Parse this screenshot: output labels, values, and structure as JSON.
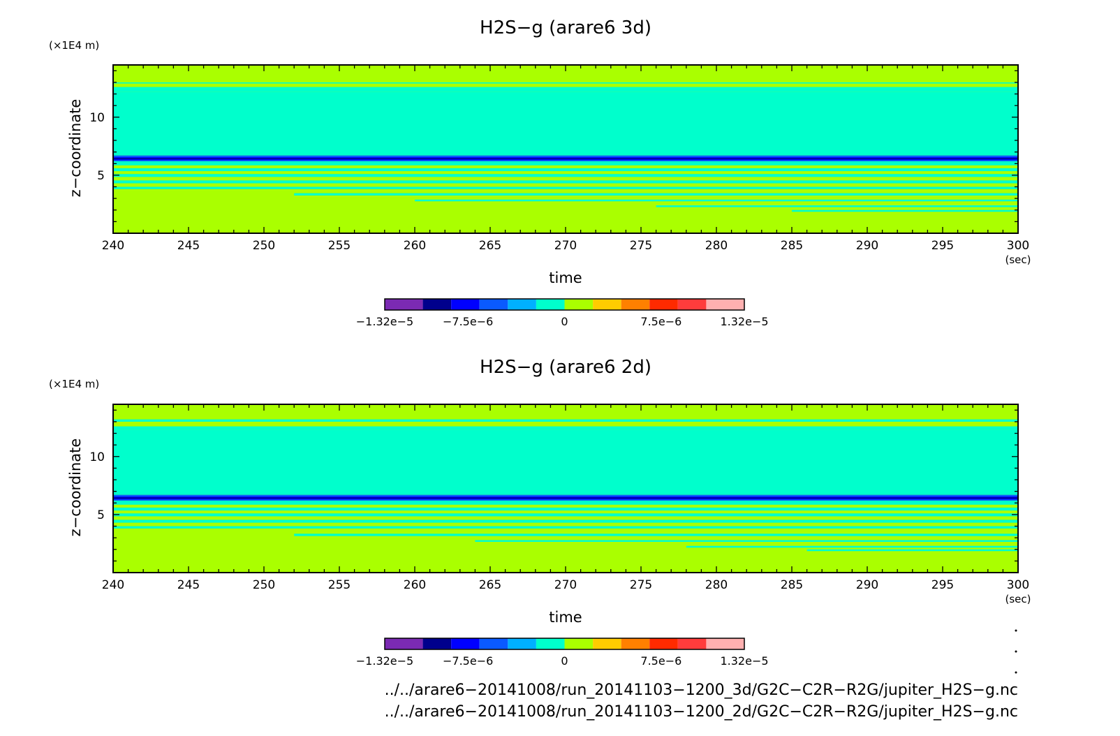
{
  "palette": [
    "#7b2ab3",
    "#00008c",
    "#0000ff",
    "#0a5aff",
    "#00b0ff",
    "#00ffcc",
    "#aaff00",
    "#ffcc00",
    "#ff8000",
    "#ff2a00",
    "#ff3c3c",
    "#ffb0b0"
  ],
  "chart_data": [
    {
      "type": "heatmap",
      "title": "H2S−g (arare6 3d)",
      "xlabel": "time",
      "x_unit": "(sec)",
      "ylabel": "z−coordinate",
      "y_unit": "(×1E4 m)",
      "xlim": [
        240,
        300
      ],
      "ylim": [
        0,
        14.5
      ],
      "x_ticks": [
        "240",
        "245",
        "250",
        "255",
        "260",
        "265",
        "270",
        "275",
        "280",
        "285",
        "290",
        "295",
        "300"
      ],
      "y_ticks": [
        "5",
        "10"
      ],
      "colorbar": {
        "levels": [
          -1.32e-05,
          -1.1e-05,
          -8.8e-06,
          -6.6e-06,
          -4.4e-06,
          -2.2e-06,
          0,
          2.2e-06,
          4.4e-06,
          6.6e-06,
          8.8e-06,
          1.1e-05,
          1.32e-05
        ],
        "tick_labels": [
          "−1.32e−5",
          "−7.5e−6",
          "0",
          "7.5e−6",
          "1.32e−5"
        ]
      },
      "field": {
        "background_bin": 6,
        "bands": [
          {
            "z0": 12.2,
            "z1": 12.6,
            "bin": 5
          },
          {
            "z0": 12.9,
            "z1": 13.0,
            "bin": 5
          },
          {
            "z0": 6.7,
            "z1": 12.2,
            "bin": 5
          },
          {
            "z0": 6.2,
            "z1": 6.7,
            "bin": 3
          },
          {
            "z0": 6.3,
            "z1": 6.55,
            "bin": 2
          },
          {
            "z0": 6.38,
            "z1": 6.47,
            "bin": 1
          },
          {
            "z0": 5.85,
            "z1": 6.2,
            "bin": 5
          },
          {
            "z0": 5.35,
            "z1": 5.6,
            "bin": 5
          },
          {
            "z0": 4.85,
            "z1": 5.1,
            "bin": 5
          },
          {
            "z0": 4.3,
            "z1": 4.55,
            "bin": 5
          },
          {
            "z0": 3.8,
            "z1": 4.0,
            "bin": 5
          },
          {
            "z0": 3.25,
            "z1": 3.45,
            "bin": 5,
            "t0": 252
          },
          {
            "z0": 2.75,
            "z1": 2.9,
            "bin": 5,
            "t0": 260
          },
          {
            "z0": 2.25,
            "z1": 2.4,
            "bin": 5,
            "t0": 276
          },
          {
            "z0": 1.85,
            "z1": 2.0,
            "bin": 5,
            "t0": 285
          }
        ]
      }
    },
    {
      "type": "heatmap",
      "title": "H2S−g (arare6 2d)",
      "xlabel": "time",
      "x_unit": "(sec)",
      "ylabel": "z−coordinate",
      "y_unit": "(×1E4 m)",
      "xlim": [
        240,
        300
      ],
      "ylim": [
        0,
        14.5
      ],
      "x_ticks": [
        "240",
        "245",
        "250",
        "255",
        "260",
        "265",
        "270",
        "275",
        "280",
        "285",
        "290",
        "295",
        "300"
      ],
      "y_ticks": [
        "5",
        "10"
      ],
      "colorbar": {
        "levels": [
          -1.32e-05,
          -1.1e-05,
          -8.8e-06,
          -6.6e-06,
          -4.4e-06,
          -2.2e-06,
          0,
          2.2e-06,
          4.4e-06,
          6.6e-06,
          8.8e-06,
          1.1e-05,
          1.32e-05
        ],
        "tick_labels": [
          "−1.32e−5",
          "−7.5e−6",
          "0",
          "7.5e−6",
          "1.32e−5"
        ]
      },
      "field": {
        "background_bin": 6,
        "bands": [
          {
            "z0": 12.3,
            "z1": 12.6,
            "bin": 5
          },
          {
            "z0": 13.0,
            "z1": 13.2,
            "bin": 5
          },
          {
            "z0": 6.7,
            "z1": 12.3,
            "bin": 5
          },
          {
            "z0": 6.2,
            "z1": 6.7,
            "bin": 3
          },
          {
            "z0": 6.3,
            "z1": 6.55,
            "bin": 2
          },
          {
            "z0": 6.38,
            "z1": 6.47,
            "bin": 1
          },
          {
            "z0": 5.85,
            "z1": 6.2,
            "bin": 5
          },
          {
            "z0": 5.35,
            "z1": 5.6,
            "bin": 5
          },
          {
            "z0": 4.85,
            "z1": 5.1,
            "bin": 5
          },
          {
            "z0": 4.3,
            "z1": 4.55,
            "bin": 5
          },
          {
            "z0": 3.8,
            "z1": 4.0,
            "bin": 5
          },
          {
            "z0": 3.15,
            "z1": 3.35,
            "bin": 5,
            "t0": 252
          },
          {
            "z0": 2.65,
            "z1": 2.8,
            "bin": 5,
            "t0": 264
          },
          {
            "z0": 2.15,
            "z1": 2.3,
            "bin": 5,
            "t0": 278
          },
          {
            "z0": 1.85,
            "z1": 2.0,
            "bin": 5,
            "t0": 286
          }
        ]
      }
    }
  ],
  "footer": {
    "file1": "../../arare6−20141008/run_20141103−1200_3d/G2C−C2R−R2G/jupiter_H2S−g.nc",
    "file2": "../../arare6−20141008/run_20141103−1200_2d/G2C−C2R−R2G/jupiter_H2S−g.nc"
  }
}
